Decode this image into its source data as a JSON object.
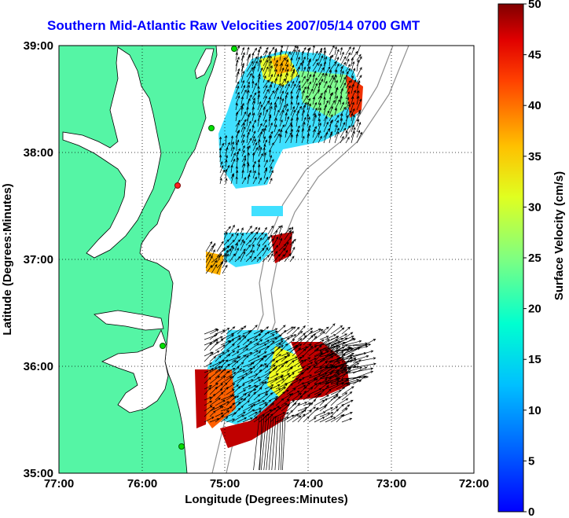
{
  "title": "Southern Mid-Atlantic Raw Velocities 2007/05/14 0700 GMT",
  "map": {
    "xlabel": "Longitude (Degrees:Minutes)",
    "ylabel": "Latitude (Degrees:Minutes)",
    "x_ticks": [
      "77:00",
      "76:00",
      "75:00",
      "74:00",
      "73:00",
      "72:00"
    ],
    "y_ticks": [
      "39:00",
      "38:00",
      "37:00",
      "36:00",
      "35:00"
    ],
    "lon_range": [
      -77,
      -72
    ],
    "lat_range": [
      35,
      39
    ],
    "grid": "dotted",
    "colors": {
      "land": "#55f5a5",
      "water": "#ffffff",
      "vectors": "#000000",
      "isobath": "#909090",
      "sites": "#00e000",
      "site_highlight": "#ff2020"
    }
  },
  "colorbar": {
    "label": "Surface Velocity (cm/s)",
    "ticks": [
      "0",
      "5",
      "10",
      "15",
      "20",
      "25",
      "30",
      "35",
      "40",
      "45",
      "50"
    ],
    "range": [
      0,
      50
    ],
    "colormap": "jet"
  }
}
